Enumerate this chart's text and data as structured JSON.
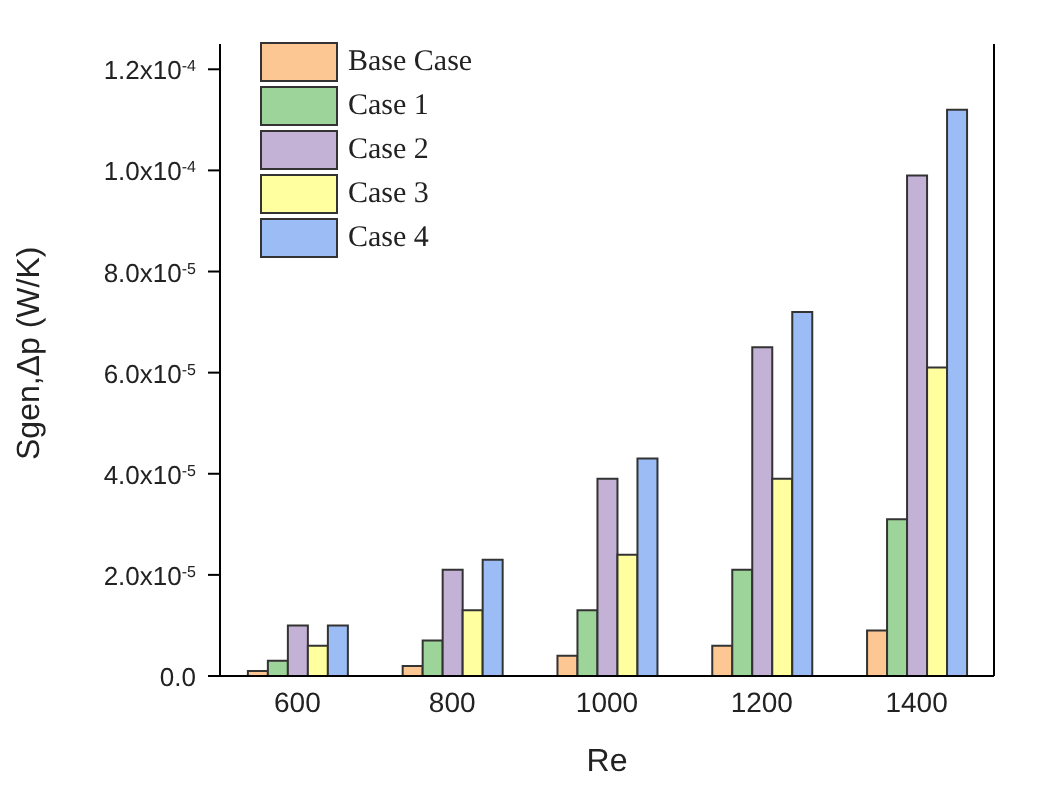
{
  "chart_data": {
    "type": "bar",
    "xlabel": "Re",
    "ylabel": "Sgen,Δp (W/K)",
    "categories": [
      "600",
      "800",
      "1000",
      "1200",
      "1400"
    ],
    "series": [
      {
        "name": "Base Case",
        "color": "#fdc793",
        "values": [
          1e-06,
          2e-06,
          4e-06,
          6e-06,
          9e-06
        ]
      },
      {
        "name": "Case 1",
        "color": "#9dd49a",
        "values": [
          3e-06,
          7e-06,
          1.3e-05,
          2.1e-05,
          3.1e-05
        ]
      },
      {
        "name": "Case 2",
        "color": "#c3b2d6",
        "values": [
          1e-05,
          2.1e-05,
          3.9e-05,
          6.5e-05,
          9.9e-05
        ]
      },
      {
        "name": "Case 3",
        "color": "#ffff9f",
        "values": [
          6e-06,
          1.3e-05,
          2.4e-05,
          3.9e-05,
          6.1e-05
        ]
      },
      {
        "name": "Case 4",
        "color": "#9bbcf4",
        "values": [
          1e-05,
          2.3e-05,
          4.3e-05,
          7.2e-05,
          0.000112
        ]
      }
    ],
    "ylim": [
      0,
      0.000125
    ],
    "yticks": [
      {
        "value": 0,
        "label": "0.0"
      },
      {
        "value": 2e-05,
        "label": "2.0x10$^{-5}$"
      },
      {
        "value": 4e-05,
        "label": "4.0x10$^{-5}$"
      },
      {
        "value": 6e-05,
        "label": "6.0x10$^{-5}$"
      },
      {
        "value": 8e-05,
        "label": "8.0x10$^{-5}$"
      },
      {
        "value": 0.0001,
        "label": "1.0x10$^{-4}$"
      },
      {
        "value": 0.00012,
        "label": "1.2x10$^{-4}$"
      }
    ],
    "legend": "top left",
    "grid": false
  }
}
